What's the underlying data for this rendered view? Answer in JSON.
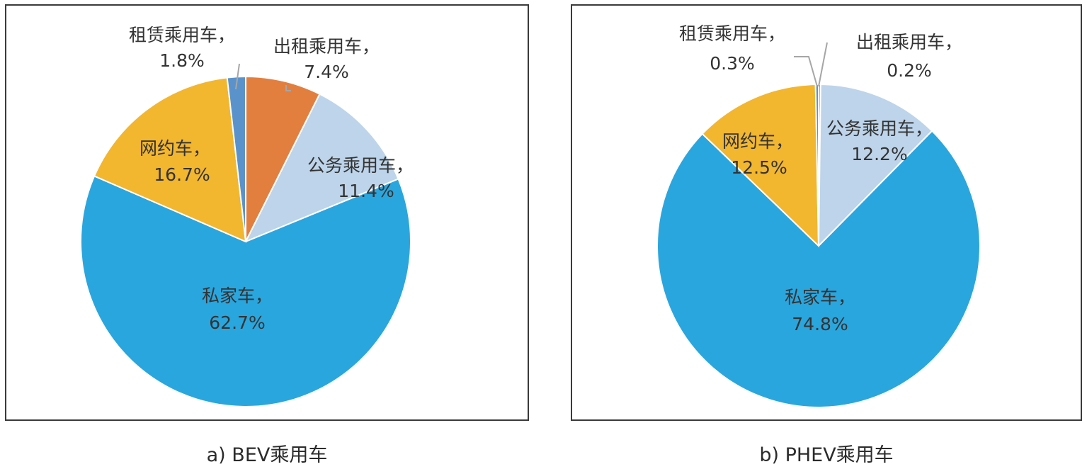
{
  "chart_data": [
    {
      "type": "pie",
      "caption": "a) BEV乘用车",
      "colors": {
        "出租乘用车": "#E27F3F",
        "公务乘用车": "#BDD4EA",
        "私家车": "#2AA6DE",
        "网约车": "#F2B62F",
        "租赁乘用车": "#5A93CC"
      },
      "slices": [
        {
          "label": "出租乘用车",
          "value": 7.4,
          "display": "7.4%"
        },
        {
          "label": "公务乘用车",
          "value": 11.4,
          "display": "11.4%"
        },
        {
          "label": "私家车",
          "value": 62.7,
          "display": "62.7%"
        },
        {
          "label": "网约车",
          "value": 16.7,
          "display": "16.7%"
        },
        {
          "label": "租赁乘用车",
          "value": 1.8,
          "display": "1.8%"
        }
      ]
    },
    {
      "type": "pie",
      "caption": "b) PHEV乘用车",
      "colors": {
        "出租乘用车": "#7A7A7A",
        "公务乘用车": "#BDD4EA",
        "私家车": "#2AA6DE",
        "网约车": "#F2B62F",
        "租赁乘用车": "#5A93CC"
      },
      "slices": [
        {
          "label": "出租乘用车",
          "value": 0.2,
          "display": "0.2%"
        },
        {
          "label": "公务乘用车",
          "value": 12.2,
          "display": "12.2%"
        },
        {
          "label": "私家车",
          "value": 74.8,
          "display": "74.8%"
        },
        {
          "label": "网约车",
          "value": 12.5,
          "display": "12.5%"
        },
        {
          "label": "租赁乘用车",
          "value": 0.3,
          "display": "0.3%"
        }
      ]
    }
  ]
}
